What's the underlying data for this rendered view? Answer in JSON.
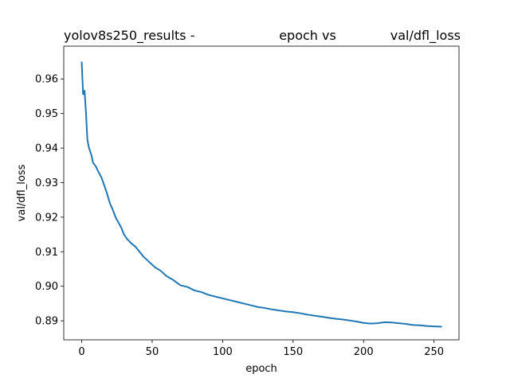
{
  "chart_data": {
    "type": "line",
    "title_parts": [
      "yolov8s250_results -",
      "epoch vs",
      "val/dfl_loss"
    ],
    "xlabel": "epoch",
    "ylabel": "val/dfl_loss",
    "xlim": [
      -12.75,
      267.75
    ],
    "ylim": [
      0.8845,
      0.9695
    ],
    "xticks": [
      0,
      50,
      100,
      150,
      200,
      250
    ],
    "yticks": [
      0.89,
      0.9,
      0.91,
      0.92,
      0.93,
      0.94,
      0.95,
      0.96
    ],
    "ytick_labels": [
      "0.89",
      "0.90",
      "0.91",
      "0.92",
      "0.93",
      "0.94",
      "0.95",
      "0.96"
    ],
    "grid": false,
    "color": "#1f77b4",
    "series": [
      {
        "points": [
          [
            0,
            0.9648
          ],
          [
            1,
            0.9556
          ],
          [
            2,
            0.9566
          ],
          [
            3,
            0.9505
          ],
          [
            4,
            0.9425
          ],
          [
            5,
            0.9403
          ],
          [
            6,
            0.939
          ],
          [
            7,
            0.9378
          ],
          [
            8,
            0.9358
          ],
          [
            10,
            0.9347
          ],
          [
            12,
            0.933
          ],
          [
            14,
            0.9315
          ],
          [
            16,
            0.9292
          ],
          [
            18,
            0.9268
          ],
          [
            20,
            0.924
          ],
          [
            22,
            0.9222
          ],
          [
            24,
            0.92
          ],
          [
            26,
            0.9185
          ],
          [
            28,
            0.917
          ],
          [
            30,
            0.915
          ],
          [
            32,
            0.9138
          ],
          [
            35,
            0.9125
          ],
          [
            38,
            0.9115
          ],
          [
            40,
            0.9105
          ],
          [
            44,
            0.9085
          ],
          [
            48,
            0.907
          ],
          [
            52,
            0.9055
          ],
          [
            56,
            0.9045
          ],
          [
            60,
            0.903
          ],
          [
            65,
            0.9018
          ],
          [
            70,
            0.9003
          ],
          [
            75,
            0.8998
          ],
          [
            80,
            0.8988
          ],
          [
            85,
            0.8983
          ],
          [
            90,
            0.8975
          ],
          [
            95,
            0.897
          ],
          [
            100,
            0.8965
          ],
          [
            105,
            0.896
          ],
          [
            110,
            0.8955
          ],
          [
            115,
            0.895
          ],
          [
            120,
            0.8945
          ],
          [
            125,
            0.894
          ],
          [
            130,
            0.8937
          ],
          [
            135,
            0.8933
          ],
          [
            140,
            0.893
          ],
          [
            145,
            0.8927
          ],
          [
            150,
            0.8925
          ],
          [
            155,
            0.8922
          ],
          [
            160,
            0.8918
          ],
          [
            165,
            0.8915
          ],
          [
            170,
            0.8912
          ],
          [
            175,
            0.8909
          ],
          [
            180,
            0.8906
          ],
          [
            185,
            0.8904
          ],
          [
            190,
            0.8901
          ],
          [
            195,
            0.8898
          ],
          [
            200,
            0.8894
          ],
          [
            205,
            0.8892
          ],
          [
            210,
            0.8893
          ],
          [
            215,
            0.8896
          ],
          [
            220,
            0.8895
          ],
          [
            225,
            0.8893
          ],
          [
            230,
            0.8891
          ],
          [
            235,
            0.8888
          ],
          [
            240,
            0.8887
          ],
          [
            245,
            0.8885
          ],
          [
            250,
            0.8884
          ],
          [
            255,
            0.8883
          ]
        ]
      }
    ]
  }
}
